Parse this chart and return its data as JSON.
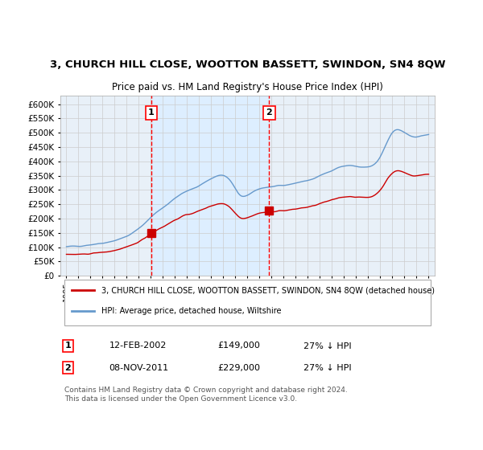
{
  "title": "3, CHURCH HILL CLOSE, WOOTTON BASSETT, SWINDON, SN4 8QW",
  "subtitle": "Price paid vs. HM Land Registry's House Price Index (HPI)",
  "legend_property": "3, CHURCH HILL CLOSE, WOOTTON BASSETT, SWINDON, SN4 8QW (detached house)",
  "legend_hpi": "HPI: Average price, detached house, Wiltshire",
  "sale1_date": "12-FEB-2002",
  "sale1_price": 149000,
  "sale1_info": "27% ↓ HPI",
  "sale2_date": "08-NOV-2011",
  "sale2_price": 229000,
  "sale2_info": "27% ↓ HPI",
  "footer": "Contains HM Land Registry data © Crown copyright and database right 2024.\nThis data is licensed under the Open Government Licence v3.0.",
  "property_color": "#cc0000",
  "hpi_color": "#6699cc",
  "shading_color": "#ddeeff",
  "background_color": "#ffffff",
  "grid_color": "#cccccc",
  "ylim": [
    0,
    620000
  ],
  "yticks": [
    0,
    50000,
    100000,
    150000,
    200000,
    250000,
    300000,
    350000,
    400000,
    450000,
    500000,
    550000,
    600000
  ]
}
